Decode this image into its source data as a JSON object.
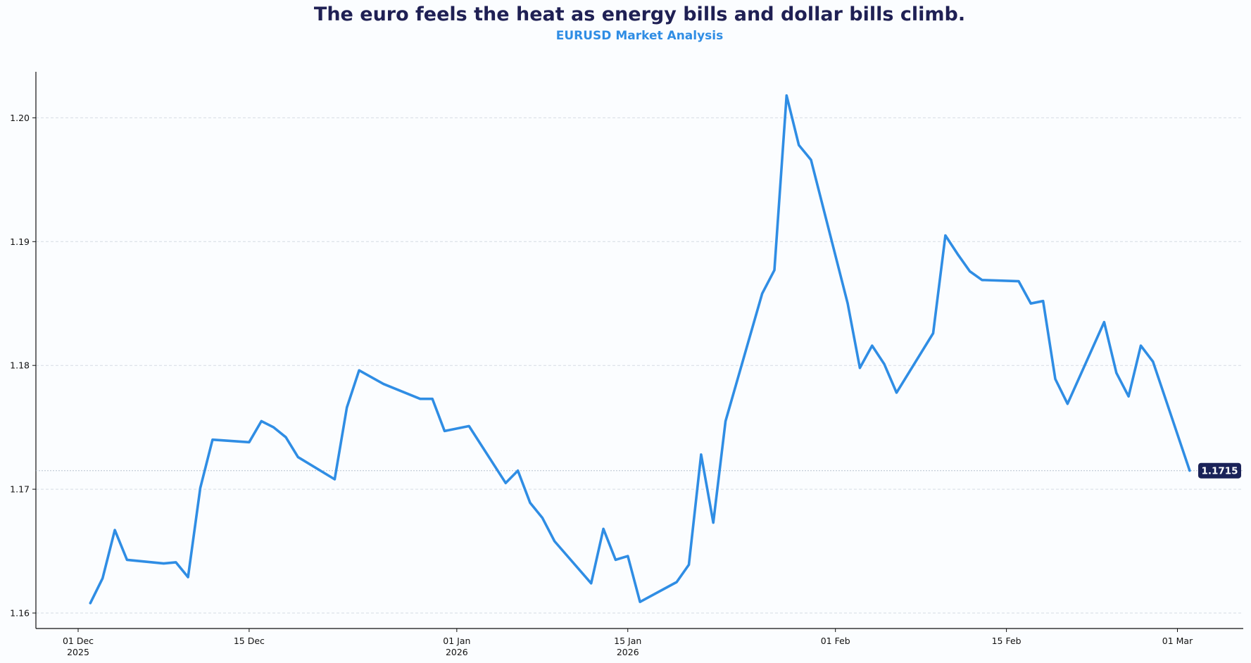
{
  "chart_data": {
    "type": "line",
    "title": "The euro feels the heat as energy bills and dollar bills climb.",
    "subtitle": "EURUSD Market Analysis",
    "xlabel": "",
    "ylabel": "",
    "xlim": [
      "2025-11-27",
      "2026-03-05"
    ],
    "ylim": [
      1.1577,
      1.2039
    ],
    "grid": "horizontal dashed",
    "line_color": "#2f8de4",
    "last_value_label": "1.1715",
    "last_value_label_color": "#1a2258",
    "yticks": [
      {
        "value": 1.16,
        "label": "1.16"
      },
      {
        "value": 1.17,
        "label": "1.17"
      },
      {
        "value": 1.18,
        "label": "1.18"
      },
      {
        "value": 1.19,
        "label": "1.19"
      },
      {
        "value": 1.2,
        "label": "1.20"
      }
    ],
    "xticks": [
      {
        "date": "2025-12-01",
        "label": "01 Dec",
        "label2": "2025"
      },
      {
        "date": "2025-12-15",
        "label": "15 Dec",
        "label2": ""
      },
      {
        "date": "2026-01-01",
        "label": "01 Jan",
        "label2": "2026"
      },
      {
        "date": "2026-01-15",
        "label": "15 Jan",
        "label2": "2026"
      },
      {
        "date": "2026-02-01",
        "label": "01 Feb",
        "label2": ""
      },
      {
        "date": "2026-02-15",
        "label": "15 Feb",
        "label2": ""
      },
      {
        "date": "2026-03-01",
        "label": "01 Mar",
        "label2": ""
      }
    ],
    "x": [
      "2025-12-02",
      "2025-12-03",
      "2025-12-04",
      "2025-12-05",
      "2025-12-08",
      "2025-12-09",
      "2025-12-10",
      "2025-12-11",
      "2025-12-12",
      "2025-12-15",
      "2025-12-16",
      "2025-12-17",
      "2025-12-18",
      "2025-12-19",
      "2025-12-22",
      "2025-12-23",
      "2025-12-24",
      "2025-12-26",
      "2025-12-29",
      "2025-12-30",
      "2025-12-31",
      "2026-01-02",
      "2026-01-05",
      "2026-01-06",
      "2026-01-07",
      "2026-01-08",
      "2026-01-09",
      "2026-01-12",
      "2026-01-13",
      "2026-01-14",
      "2026-01-15",
      "2026-01-16",
      "2026-01-19",
      "2026-01-20",
      "2026-01-21",
      "2026-01-22",
      "2026-01-23",
      "2026-01-26",
      "2026-01-27",
      "2026-01-28",
      "2026-01-29",
      "2026-01-30",
      "2026-02-02",
      "2026-02-03",
      "2026-02-04",
      "2026-02-05",
      "2026-02-06",
      "2026-02-09",
      "2026-02-10",
      "2026-02-11",
      "2026-02-12",
      "2026-02-13",
      "2026-02-16",
      "2026-02-17",
      "2026-02-18",
      "2026-02-19",
      "2026-02-20",
      "2026-02-23",
      "2026-02-24",
      "2026-02-25",
      "2026-02-26",
      "2026-02-27",
      "2026-03-02"
    ],
    "series": [
      {
        "values": [
          1.1608,
          1.1628,
          1.1667,
          1.1643,
          1.164,
          1.1641,
          1.1629,
          1.1701,
          1.174,
          1.1738,
          1.1755,
          1.175,
          1.1742,
          1.1726,
          1.1708,
          1.1766,
          1.1796,
          1.1785,
          1.1773,
          1.1773,
          1.1747,
          1.1751,
          1.1705,
          1.1715,
          1.1689,
          1.1677,
          1.1658,
          1.1624,
          1.1668,
          1.1643,
          1.1646,
          1.1609,
          1.1625,
          1.1639,
          1.1728,
          1.1673,
          1.1755,
          1.1858,
          1.1877,
          1.2018,
          1.1978,
          1.1966,
          1.185,
          1.1798,
          1.1816,
          1.1801,
          1.1778,
          1.1826,
          1.1905,
          1.189,
          1.1876,
          1.1869,
          1.1868,
          1.185,
          1.1852,
          1.1789,
          1.1769,
          1.1835,
          1.1794,
          1.1775,
          1.1816,
          1.1803,
          1.1715
        ]
      }
    ]
  }
}
